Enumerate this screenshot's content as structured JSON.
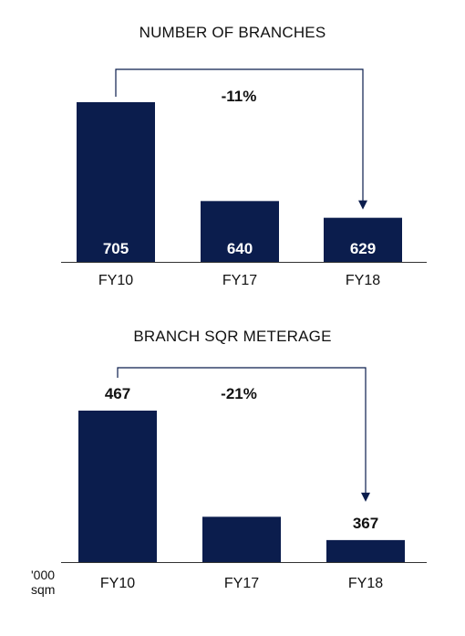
{
  "colors": {
    "bar": "#0b1d4d",
    "axis": "#333333",
    "arrow": "#0b1d4d",
    "label_in_bar": "#ffffff",
    "label_out": "#111111"
  },
  "chart_data": [
    {
      "type": "bar",
      "title": "NUMBER OF BRANCHES",
      "categories": [
        "FY10",
        "FY17",
        "FY18"
      ],
      "values": [
        705,
        640,
        629
      ],
      "data_labels": [
        "705",
        "640",
        "629"
      ],
      "label_position": "inside-bottom",
      "annotation": {
        "text": "-11%",
        "from": "FY10",
        "to": "FY18",
        "style": "bracket-arrow"
      },
      "ylim": [
        600,
        715
      ]
    },
    {
      "type": "bar",
      "title": "BRANCH SQR METERAGE",
      "categories": [
        "FY10",
        "FY17",
        "FY18"
      ],
      "values": [
        467,
        385,
        367
      ],
      "data_labels": [
        "467",
        "",
        "367"
      ],
      "label_position": "above",
      "annotation": {
        "text": "-21%",
        "from": "FY10",
        "to": "FY18",
        "style": "bracket-arrow"
      },
      "unit_label": [
        "'000",
        "sqm"
      ],
      "ylim": [
        350,
        480
      ]
    }
  ]
}
